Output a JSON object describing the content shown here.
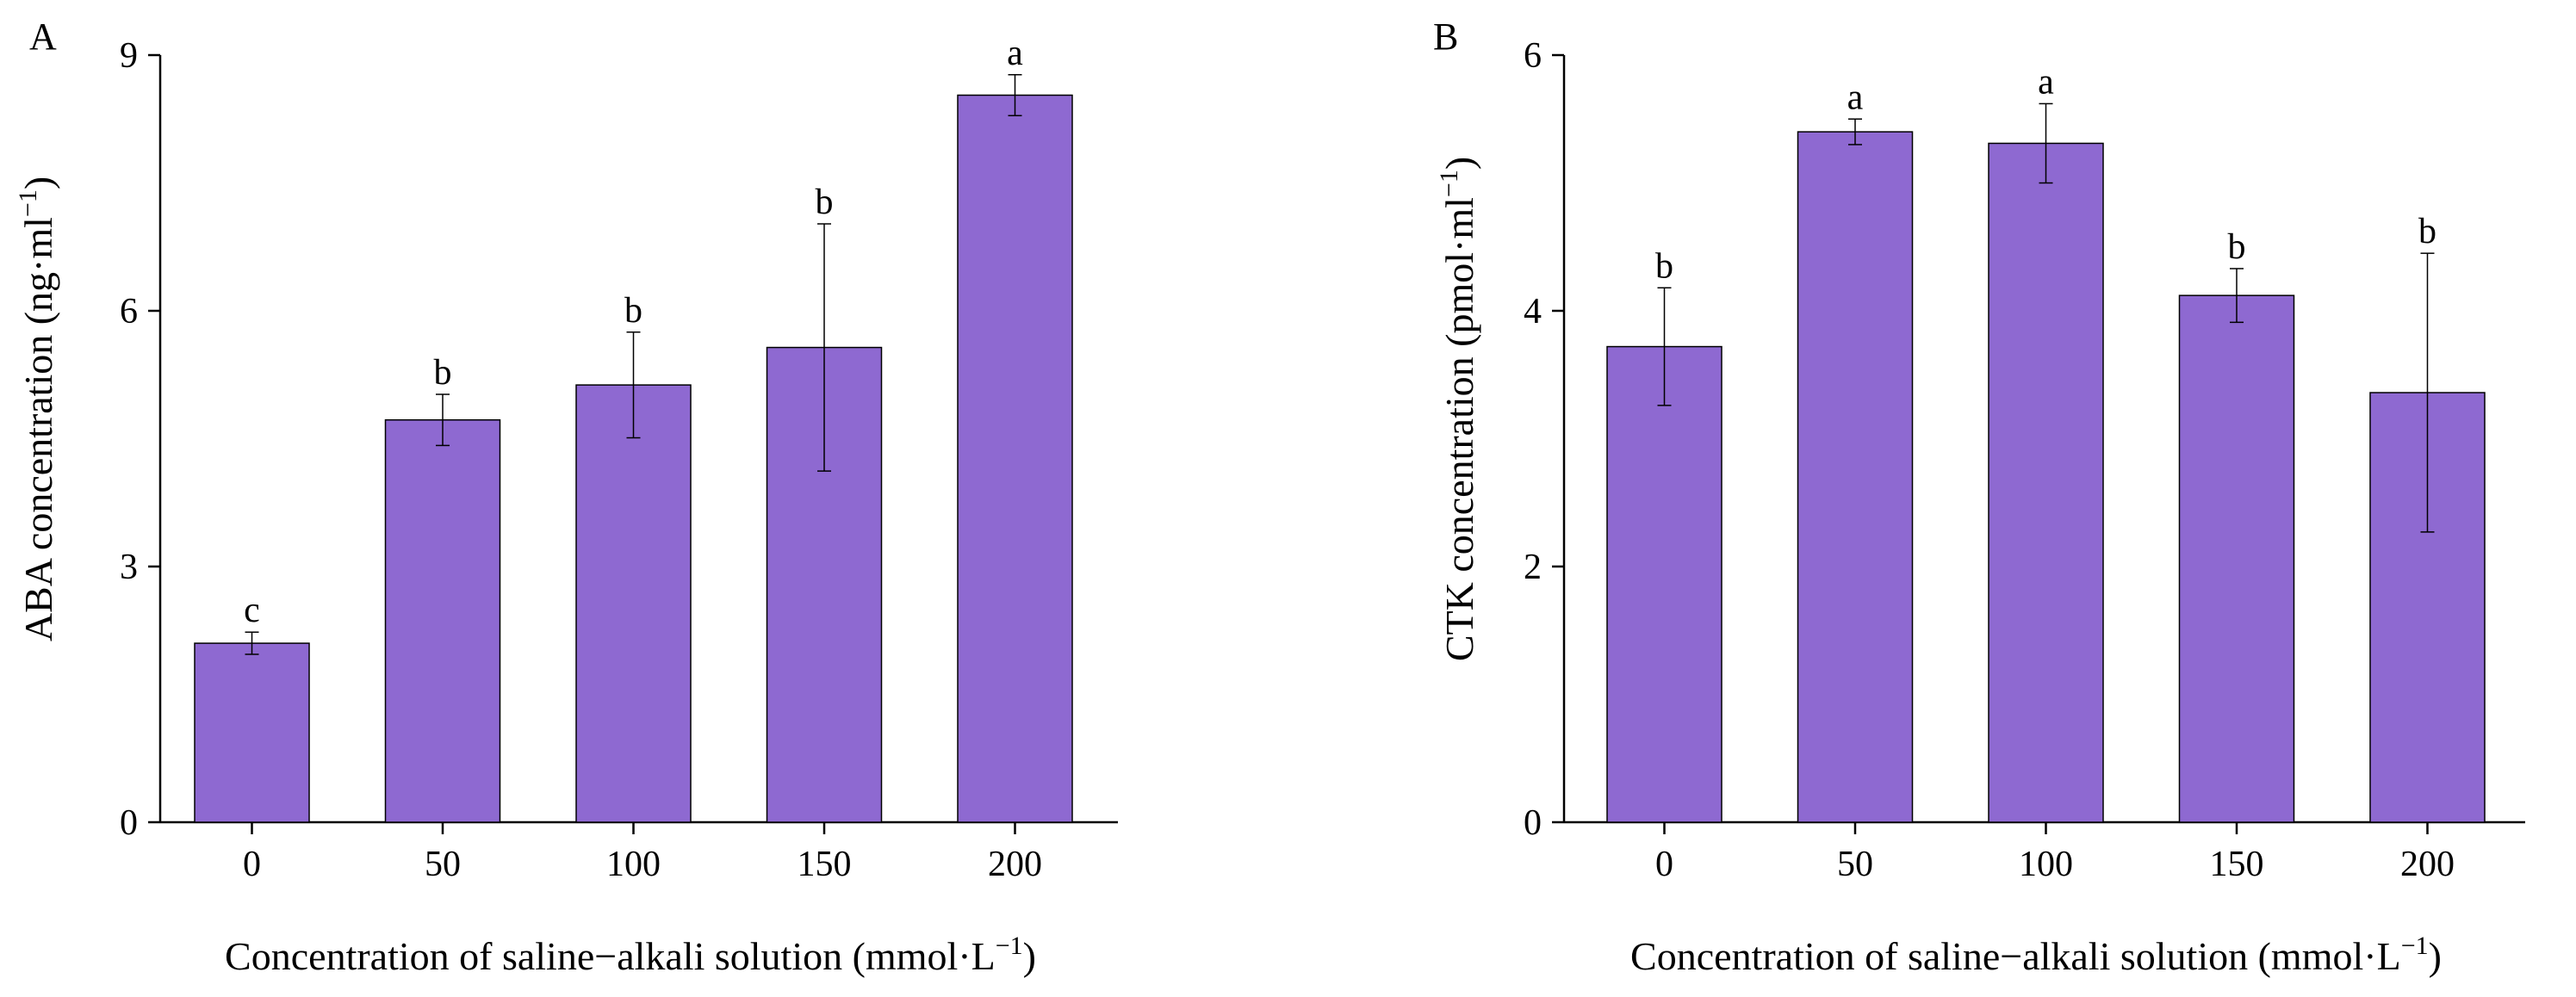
{
  "chart_data": [
    {
      "type": "bar",
      "panel": "A",
      "categories": [
        "0",
        "50",
        "100",
        "150",
        "200"
      ],
      "values": [
        2.1,
        4.72,
        5.13,
        5.57,
        8.53
      ],
      "errors": [
        0.13,
        0.3,
        0.62,
        1.45,
        0.24
      ],
      "significance": [
        "c",
        "b",
        "b",
        "b",
        "a"
      ],
      "ylim": [
        0,
        9
      ],
      "yticks": [
        "0",
        "3",
        "6",
        "9"
      ],
      "ylabel": "ABA concentration (ng·ml",
      "ylabel_sup": "−1",
      "ylabel_close": ")",
      "xlabel": "Concentration of saline−alkali solution (mmol·L",
      "xlabel_sup": "−1",
      "xlabel_close": ")",
      "bar_color": "#8e69d1"
    },
    {
      "type": "bar",
      "panel": "B",
      "categories": [
        "0",
        "50",
        "100",
        "150",
        "200"
      ],
      "values": [
        3.72,
        5.4,
        5.31,
        4.12,
        3.36
      ],
      "errors": [
        0.46,
        0.1,
        0.31,
        0.21,
        1.09
      ],
      "significance": [
        "b",
        "a",
        "a",
        "b",
        "b"
      ],
      "ylim": [
        0,
        6
      ],
      "yticks": [
        "0",
        "2",
        "4",
        "6"
      ],
      "ylabel": "CTK concentration (pmol·ml",
      "ylabel_sup": "−1",
      "ylabel_close": ")",
      "xlabel": "Concentration of saline−alkali solution (mmol·L",
      "xlabel_sup": "−1",
      "xlabel_close": ")",
      "bar_color": "#8e69d1"
    }
  ]
}
